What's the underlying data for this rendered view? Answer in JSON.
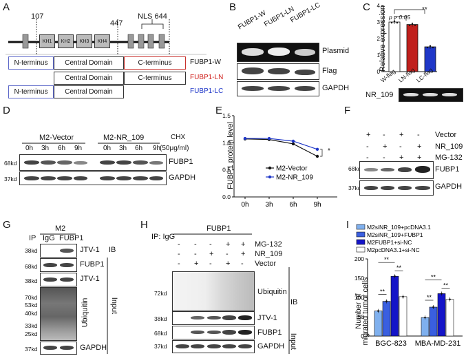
{
  "panel_letters": [
    "A",
    "B",
    "C",
    "D",
    "E",
    "F",
    "G",
    "H",
    "I"
  ],
  "A": {
    "pos": [
      "107",
      "447",
      "NLS 644"
    ],
    "domains": [
      "KH1",
      "KH2",
      "KH3",
      "KH4"
    ],
    "rows": [
      {
        "cells": [
          "N-terminus",
          "Central Domain",
          "C-terminus"
        ],
        "label": "FUBP1-W",
        "color": "#111111"
      },
      {
        "cells": [
          "Central Domain",
          "C-terminus"
        ],
        "label": "FUBP1-LN",
        "color": "#d0201c"
      },
      {
        "cells": [
          "N-terminus",
          "Central Domain"
        ],
        "label": "FUBP1-LC",
        "color": "#1f37c8"
      }
    ],
    "colors": {
      "nterm_border": "#5b66c8",
      "cterm_border": "#c8322e"
    }
  },
  "B": {
    "lanes": [
      "FUBP1-W",
      "FUBP1-LN",
      "FUBP1-LC"
    ],
    "rows": [
      "Plasmid",
      "Flag",
      "GAPDH"
    ]
  },
  "C": {
    "ylabel": "Relative expression",
    "yticks": [
      "0",
      "1",
      "2",
      "3",
      "4"
    ],
    "p_label": "p > 0.05",
    "sig": "**",
    "lanes": [
      "W-flag",
      "LN-flag",
      "LC-flag"
    ],
    "gel_label": "NR_109",
    "chart_data": {
      "type": "bar",
      "categories": [
        "W-flag",
        "LN-flag",
        "LC-flag"
      ],
      "values": [
        3.0,
        2.85,
        1.5
      ],
      "ylim": [
        0,
        4
      ],
      "colors": [
        "#ffffff",
        "#c0201c",
        "#1f37c8"
      ]
    }
  },
  "D": {
    "groups": [
      "M2-Vector",
      "M2-NR_109"
    ],
    "times": [
      "0h",
      "3h",
      "6h",
      "9h",
      "0h",
      "3h",
      "6h",
      "9h"
    ],
    "chx": "CHX",
    "chx_conc": "(50μg/ml)",
    "rows": [
      "FUBP1",
      "GAPDH"
    ],
    "mw": [
      "68kd",
      "37kd"
    ]
  },
  "E": {
    "ylabel": "FUBP1 protein level",
    "yticks": [
      "0.0",
      "0.5",
      "1.0",
      "1.5"
    ],
    "sig": "*",
    "chart_data": {
      "type": "line",
      "x": [
        "0h",
        "3h",
        "6h",
        "9h"
      ],
      "series": [
        {
          "name": "M2-Vector",
          "values": [
            1.07,
            1.06,
            0.98,
            0.75
          ],
          "color": "#111111"
        },
        {
          "name": "M2-NR_109",
          "values": [
            1.08,
            1.08,
            1.03,
            0.88
          ],
          "color": "#1f37c8"
        }
      ],
      "ylim": [
        0,
        1.5
      ]
    }
  },
  "F": {
    "rows": [
      {
        "label": "Vector",
        "marks": [
          "+",
          "-",
          "+",
          "-"
        ]
      },
      {
        "label": "NR_109",
        "marks": [
          "-",
          "+",
          "-",
          "+"
        ]
      },
      {
        "label": "MG-132",
        "marks": [
          "-",
          "-",
          "+",
          "+"
        ]
      }
    ],
    "blots": [
      "FUBP1",
      "GAPDH"
    ],
    "mw": [
      "68kd",
      "37kd"
    ]
  },
  "G": {
    "ip": "IP",
    "group": "M2",
    "lanes": [
      "IgG",
      "FUBP1"
    ],
    "mw": [
      "38kd",
      "68kd",
      "38kd",
      "70kd",
      "53kd",
      "40kd",
      "33kd",
      "25kd",
      "37kd"
    ],
    "blots": [
      "JTV-1",
      "FUBP1",
      "JTV-1",
      "Ubiquitin",
      "GAPDH"
    ],
    "ib": "IB",
    "input": "Input"
  },
  "H": {
    "ip": "IP: IgG",
    "group": "FUBP1",
    "rows": [
      {
        "label": "MG-132",
        "marks": [
          "-",
          "-",
          "-",
          "+",
          "+"
        ]
      },
      {
        "label": "NR_109",
        "marks": [
          "-",
          "-",
          "+",
          "-",
          "+"
        ]
      },
      {
        "label": "Vector",
        "marks": [
          "-",
          "+",
          "-",
          "+",
          "-"
        ]
      }
    ],
    "mw": [
      "72kd",
      "38kd",
      "68kd",
      "37kd"
    ],
    "blots": [
      "Ubiquitin",
      "JTV-1",
      "FUBP1",
      "GAPDH"
    ],
    "ib": "IB",
    "input": "Input"
  },
  "I": {
    "ylabel_line1": "Number of",
    "ylabel_line2": "migrated tumor cells",
    "yticks": [
      "0",
      "50",
      "100",
      "150",
      "200"
    ],
    "sig": "**",
    "chart_data": {
      "type": "bar",
      "categories": [
        "BGC-823",
        "MBA-MD-231"
      ],
      "series": [
        {
          "name": "M2siNR_109+pcDNA3.1",
          "values": [
            65,
            48
          ],
          "color": "#7fb0ee"
        },
        {
          "name": "M2siNR_109+FUBP1",
          "values": [
            90,
            75
          ],
          "color": "#3a5fe0"
        },
        {
          "name": "M2FUBP1+si-NC",
          "values": [
            155,
            110
          ],
          "color": "#1414c8"
        },
        {
          "name": "M2pcDNA3.1+si-NC",
          "values": [
            102,
            95
          ],
          "color": "#ffffff"
        }
      ],
      "ylim": [
        0,
        200
      ]
    }
  }
}
